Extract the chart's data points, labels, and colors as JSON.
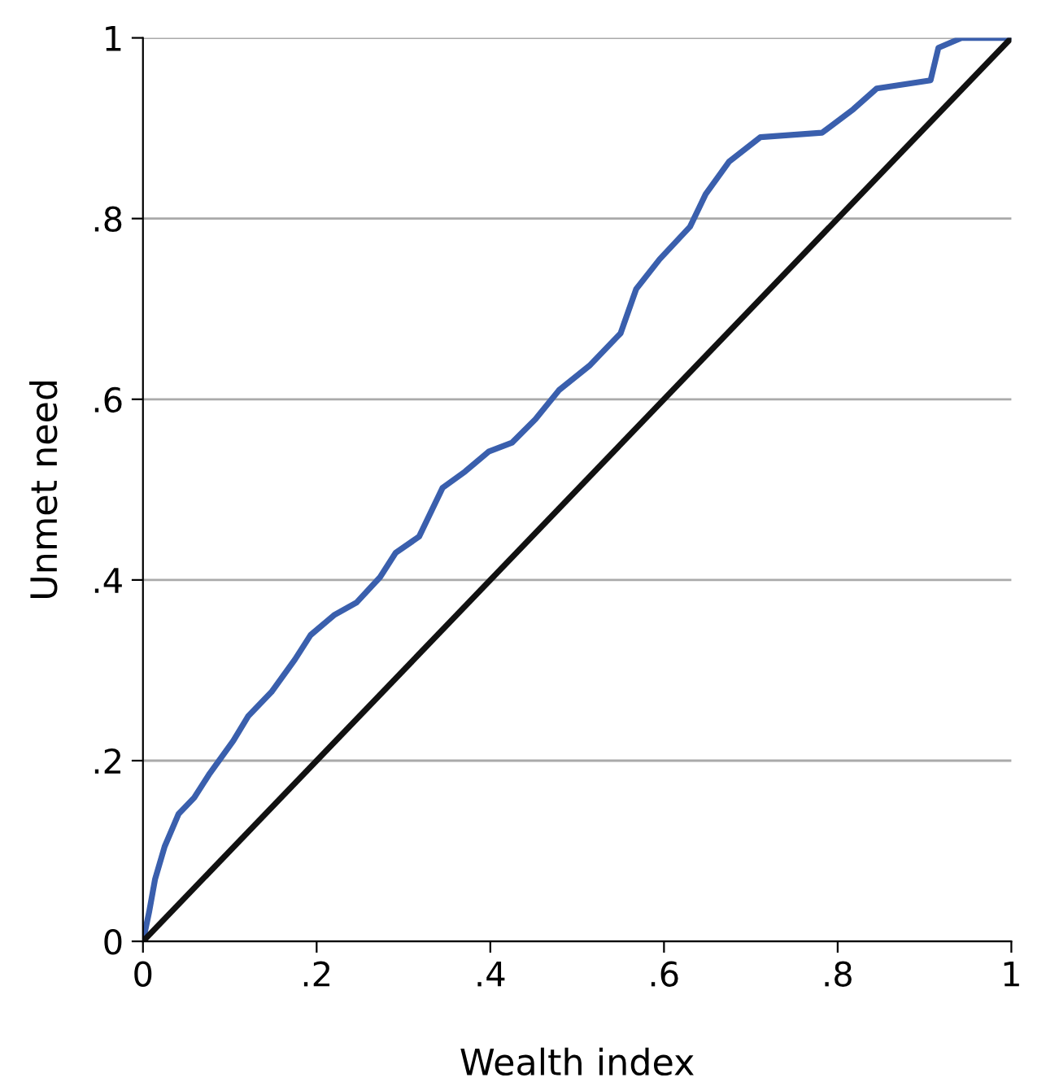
{
  "chart_data": {
    "type": "line",
    "xlabel": "Wealth index",
    "ylabel": "Unmet need",
    "xlim": [
      0,
      1
    ],
    "ylim": [
      0,
      1
    ],
    "xticks": [
      0,
      {
        "value": 0.2,
        "label": ".2"
      },
      {
        "value": 0.4,
        "label": ".4"
      },
      {
        "value": 0.6,
        "label": ".6"
      },
      {
        "value": 0.8,
        "label": ".8"
      },
      1
    ],
    "yticks": [
      0,
      {
        "value": 0.2,
        "label": ".2"
      },
      {
        "value": 0.4,
        "label": ".4"
      },
      {
        "value": 0.6,
        "label": ".6"
      },
      {
        "value": 0.8,
        "label": ".8"
      },
      1
    ],
    "grid": "y",
    "legend": false,
    "marker": "none",
    "line_style": "solid",
    "series": [
      {
        "color": "#3a5fad",
        "x": [
          0,
          0.007,
          0.014,
          0.025,
          0.041,
          0.059,
          0.077,
          0.104,
          0.121,
          0.148,
          0.175,
          0.193,
          0.22,
          0.246,
          0.273,
          0.291,
          0.318,
          0.345,
          0.371,
          0.398,
          0.425,
          0.452,
          0.479,
          0.514,
          0.55,
          0.568,
          0.595,
          0.63,
          0.648,
          0.675,
          0.711,
          0.782,
          0.818,
          0.845,
          0.907,
          0.916,
          0.943,
          1
        ],
        "values": [
          0,
          0.032,
          0.069,
          0.105,
          0.141,
          0.159,
          0.186,
          0.222,
          0.249,
          0.276,
          0.312,
          0.339,
          0.361,
          0.375,
          0.403,
          0.43,
          0.448,
          0.502,
          0.52,
          0.542,
          0.552,
          0.578,
          0.61,
          0.637,
          0.673,
          0.722,
          0.755,
          0.791,
          0.827,
          0.863,
          0.89,
          0.895,
          0.921,
          0.944,
          0.953,
          0.989,
          1,
          1
        ]
      },
      {
        "color": "#111111",
        "x": [
          0,
          1
        ],
        "values": [
          0,
          1
        ]
      }
    ]
  }
}
